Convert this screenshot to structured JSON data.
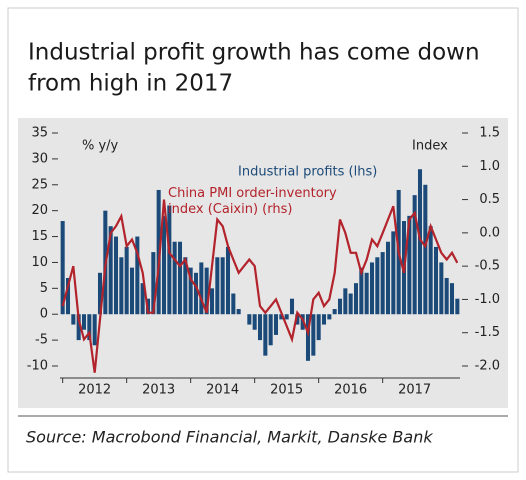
{
  "chart_data": {
    "type": "bar_line",
    "title": "Industrial profit growth has come down from high in 2017",
    "source": "Source: Macrobond Financial, Markit, Danske Bank",
    "y_label": "% y/y",
    "y2_label": "Index",
    "categories": [
      null,
      null,
      null,
      null,
      null,
      null,
      "2012",
      null,
      null,
      null,
      null,
      null,
      null,
      null,
      null,
      null,
      null,
      null,
      "2013",
      null,
      null,
      null,
      null,
      null,
      null,
      null,
      null,
      null,
      null,
      null,
      "2014",
      null,
      null,
      null,
      null,
      null,
      null,
      null,
      null,
      null,
      null,
      null,
      "2015",
      null,
      null,
      null,
      null,
      null,
      null,
      null,
      null,
      null,
      null,
      null,
      "2016",
      null,
      null,
      null,
      null,
      null,
      null,
      null,
      null,
      null,
      null,
      null,
      "2017",
      null,
      null,
      null,
      null,
      null,
      null,
      null,
      null
    ],
    "series": [
      {
        "name": "Industrial profits (lhs)",
        "color": "#1b4a78",
        "type": "bar",
        "values": [
          18,
          7,
          -2,
          -5,
          -3,
          -5,
          -6,
          8,
          20,
          17,
          15,
          11,
          13,
          9,
          15,
          6,
          3,
          12,
          24,
          19,
          21,
          14,
          14,
          11,
          9,
          8,
          10,
          9,
          5,
          11,
          11,
          13,
          4,
          1,
          0,
          -2,
          -3,
          -5,
          -8,
          -6,
          -4,
          -1,
          -1,
          3,
          -2,
          -3,
          -9,
          -8,
          -5,
          -2,
          -1,
          1,
          3,
          5,
          4,
          6,
          9,
          8,
          10,
          11,
          12,
          14,
          16,
          24,
          18,
          19,
          23,
          28,
          25,
          17,
          13,
          10,
          7,
          6,
          3
        ]
      },
      {
        "name": "China PMI order-inventory index (Caixin) (rhs)",
        "color": "#b3232b",
        "type": "line",
        "axis": "y2",
        "values": [
          -1.1,
          -0.8,
          -0.5,
          -1.3,
          -1.6,
          -1.5,
          -2.1,
          -1.3,
          -0.5,
          0.0,
          0.1,
          0.25,
          -0.2,
          -0.1,
          -0.3,
          -0.6,
          -1.2,
          -1.2,
          -0.5,
          0.5,
          -0.3,
          -0.4,
          -0.5,
          -0.4,
          -0.7,
          -0.8,
          -1.0,
          -1.2,
          -0.5,
          0.2,
          0.1,
          -0.2,
          -0.4,
          -0.6,
          -0.5,
          -0.4,
          -0.5,
          -1.1,
          -1.2,
          -1.1,
          -1.0,
          -1.2,
          -1.4,
          -1.6,
          -1.2,
          -1.3,
          -1.5,
          -1.0,
          -0.9,
          -1.1,
          -1.0,
          -0.6,
          0.2,
          0.0,
          -0.3,
          -0.3,
          -0.6,
          -0.4,
          -0.1,
          -0.2,
          0.0,
          0.2,
          0.4,
          -0.3,
          -0.6,
          0.2,
          0.3,
          -0.1,
          -0.2,
          0.1,
          -0.1,
          -0.3,
          -0.4,
          -0.3,
          -0.45
        ]
      }
    ],
    "ylim": [
      -10,
      35
    ],
    "yticks": [
      -10,
      -5,
      0,
      5,
      10,
      15,
      20,
      25,
      30,
      35
    ],
    "y2lim": [
      -2,
      1.5
    ],
    "y2ticks": [
      {
        "value": -2,
        "label": "-2.0"
      },
      -1.5,
      {
        "value": -1,
        "label": "-1.0"
      },
      -0.5,
      {
        "value": 0,
        "label": "0.0"
      },
      0.5,
      {
        "value": 1,
        "label": "1.0"
      },
      1.5
    ]
  }
}
